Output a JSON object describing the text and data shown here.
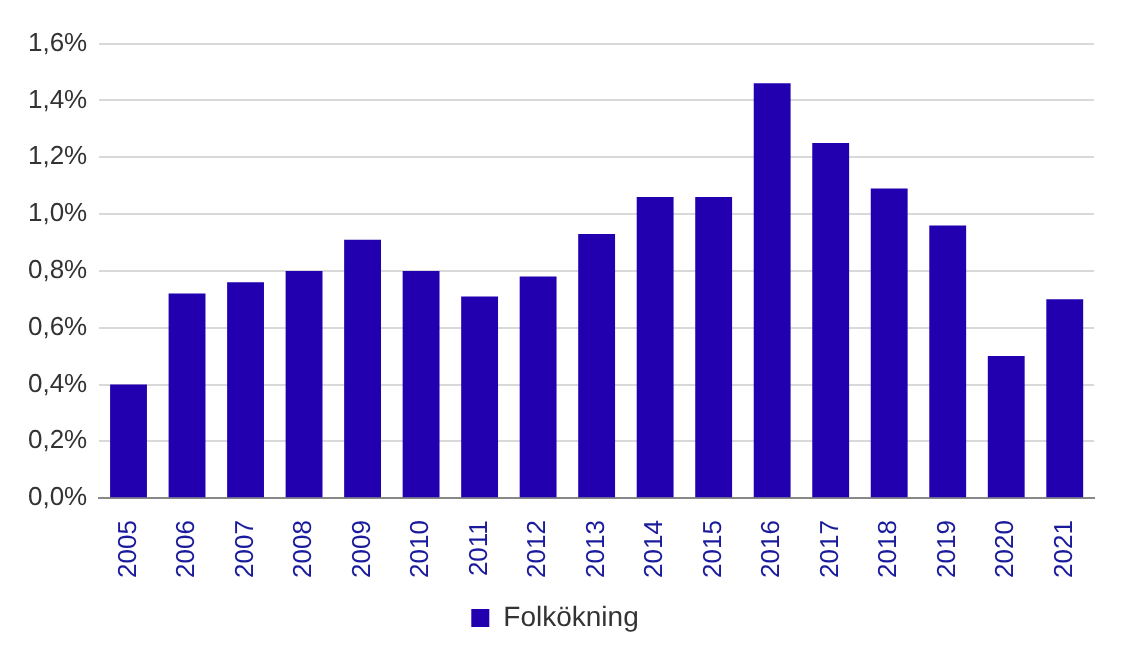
{
  "chart_data": {
    "type": "bar",
    "categories": [
      "2005",
      "2006",
      "2007",
      "2008",
      "2009",
      "2010",
      "2011",
      "2012",
      "2013",
      "2014",
      "2015",
      "2016",
      "2017",
      "2018",
      "2019",
      "2020",
      "2021"
    ],
    "series": [
      {
        "name": "Folkökning",
        "color": "#2200b0",
        "values": [
          0.4,
          0.72,
          0.76,
          0.8,
          0.91,
          0.8,
          0.71,
          0.78,
          0.93,
          1.06,
          1.06,
          1.46,
          1.25,
          1.09,
          0.96,
          0.5,
          0.7
        ]
      }
    ],
    "ylim": [
      0,
      1.6
    ],
    "yticks": [
      {
        "value": 0,
        "label": "0,0%"
      },
      {
        "value": 0.2,
        "label": "0,2%"
      },
      {
        "value": 0.4,
        "label": "0,4%"
      },
      {
        "value": 0.6,
        "label": "0,6%"
      },
      {
        "value": 0.8,
        "label": "0,8%"
      },
      {
        "value": 1.0,
        "label": "1,0%"
      },
      {
        "value": 1.2,
        "label": "1,2%"
      },
      {
        "value": 1.4,
        "label": "1,4%"
      },
      {
        "value": 1.6,
        "label": "1,6%"
      }
    ],
    "grid": "y",
    "legend": "bottom"
  }
}
